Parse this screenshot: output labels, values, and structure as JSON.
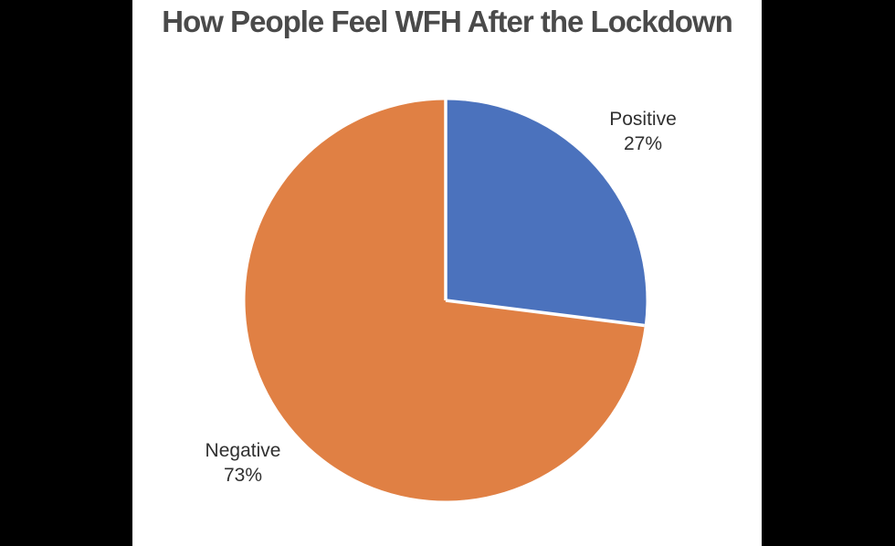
{
  "page": {
    "letterbox_color": "#000000",
    "canvas_background": "#ffffff"
  },
  "chart_data": {
    "type": "pie",
    "title": "How People Feel WFH After the Lockdown",
    "title_color": "#4a4a4a",
    "categories": [
      "Positive",
      "Negative"
    ],
    "values": [
      27,
      73
    ],
    "slices": [
      {
        "label": "Positive",
        "value": 27,
        "display_value": "27%",
        "color": "#4b72bd"
      },
      {
        "label": "Negative",
        "value": 73,
        "display_value": "73%",
        "color": "#e08044"
      }
    ],
    "start_angle": "12 o'clock",
    "direction": "clockwise",
    "separator_color": "#ffffff",
    "label_color": "#303030",
    "legend_position": "none"
  }
}
